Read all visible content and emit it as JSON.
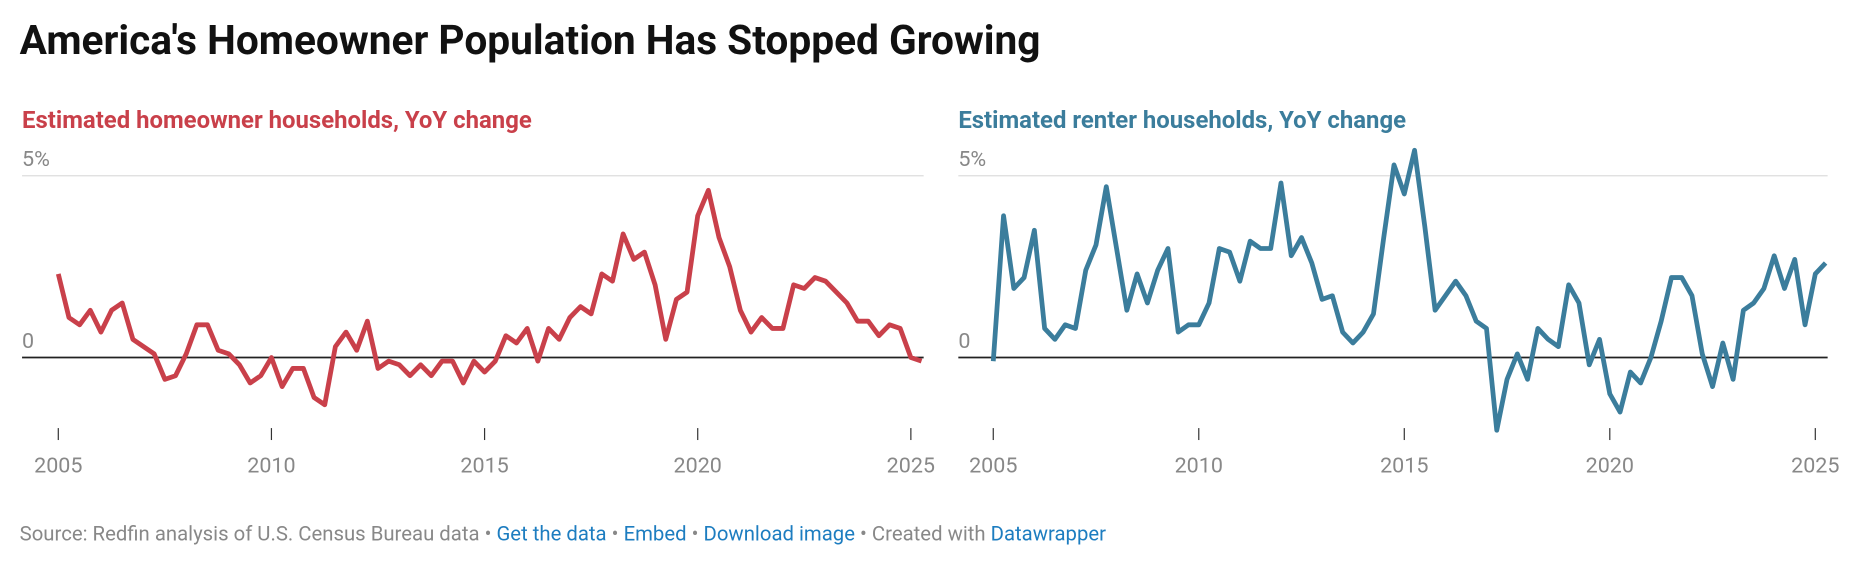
{
  "title": "America's Homeowner Population Has Stopped Growing",
  "chart_data": [
    {
      "type": "line",
      "title": "Estimated homeowner households, YoY change",
      "color": "#c9404a",
      "x": [
        2005,
        2005.25,
        2005.5,
        2005.75,
        2006,
        2006.25,
        2006.5,
        2006.75,
        2007,
        2007.25,
        2007.5,
        2007.75,
        2008,
        2008.25,
        2008.5,
        2008.75,
        2009,
        2009.25,
        2009.5,
        2009.75,
        2010,
        2010.25,
        2010.5,
        2010.75,
        2011,
        2011.25,
        2011.5,
        2011.75,
        2012,
        2012.25,
        2012.5,
        2012.75,
        2013,
        2013.25,
        2013.5,
        2013.75,
        2014,
        2014.25,
        2014.5,
        2014.75,
        2015,
        2015.25,
        2015.5,
        2015.75,
        2016,
        2016.25,
        2016.5,
        2016.75,
        2017,
        2017.25,
        2017.5,
        2017.75,
        2018,
        2018.25,
        2018.5,
        2018.75,
        2019,
        2019.25,
        2019.5,
        2019.75,
        2020,
        2020.25,
        2020.5,
        2020.75,
        2021,
        2021.25,
        2021.5,
        2021.75,
        2022,
        2022.25,
        2022.5,
        2022.75,
        2023,
        2023.25,
        2023.5,
        2023.75,
        2024,
        2024.25,
        2024.5,
        2024.75,
        2025,
        2025.25
      ],
      "values": [
        2.3,
        1.1,
        0.9,
        1.3,
        0.7,
        1.3,
        1.5,
        0.5,
        0.3,
        0.1,
        -0.6,
        -0.5,
        0.1,
        0.9,
        0.9,
        0.2,
        0.1,
        -0.2,
        -0.7,
        -0.5,
        0.0,
        -0.8,
        -0.3,
        -0.3,
        -1.1,
        -1.3,
        0.3,
        0.7,
        0.2,
        1.0,
        -0.3,
        -0.1,
        -0.2,
        -0.5,
        -0.2,
        -0.5,
        -0.1,
        -0.1,
        -0.7,
        -0.1,
        -0.4,
        -0.1,
        0.6,
        0.4,
        0.8,
        -0.1,
        0.8,
        0.5,
        1.1,
        1.4,
        1.2,
        2.3,
        2.1,
        3.4,
        2.7,
        2.9,
        2.0,
        0.5,
        1.6,
        1.8,
        3.9,
        4.6,
        3.3,
        2.5,
        1.3,
        0.7,
        1.1,
        0.8,
        0.8,
        2.0,
        1.9,
        2.2,
        2.1,
        1.8,
        1.5,
        1.0,
        1.0,
        0.6,
        0.9,
        0.8,
        0.0,
        -0.1
      ],
      "xlim": [
        2004.15,
        2025.3
      ],
      "xticks": [
        2005,
        2010,
        2015,
        2020,
        2025
      ],
      "ylim": [
        -2.5,
        5
      ],
      "yticks": [
        {
          "value": 5,
          "label": "5%"
        },
        0
      ],
      "grid": true
    },
    {
      "type": "line",
      "title": "Estimated renter households, YoY change",
      "color": "#3b7d9c",
      "x": [
        2005,
        2005.25,
        2005.5,
        2005.75,
        2006,
        2006.25,
        2006.5,
        2006.75,
        2007,
        2007.25,
        2007.5,
        2007.75,
        2008,
        2008.25,
        2008.5,
        2008.75,
        2009,
        2009.25,
        2009.5,
        2009.75,
        2010,
        2010.25,
        2010.5,
        2010.75,
        2011,
        2011.25,
        2011.5,
        2011.75,
        2012,
        2012.25,
        2012.5,
        2012.75,
        2013,
        2013.25,
        2013.5,
        2013.75,
        2014,
        2014.25,
        2014.5,
        2014.75,
        2015,
        2015.25,
        2015.5,
        2015.75,
        2016,
        2016.25,
        2016.5,
        2016.75,
        2017,
        2017.25,
        2017.5,
        2017.75,
        2018,
        2018.25,
        2018.5,
        2018.75,
        2019,
        2019.25,
        2019.5,
        2019.75,
        2020,
        2020.25,
        2020.5,
        2020.75,
        2021,
        2021.25,
        2021.5,
        2021.75,
        2022,
        2022.25,
        2022.5,
        2022.75,
        2023,
        2023.25,
        2023.5,
        2023.75,
        2024,
        2024.25,
        2024.5,
        2024.75,
        2025,
        2025.25
      ],
      "values": [
        -0.1,
        3.9,
        1.9,
        2.2,
        3.5,
        0.8,
        0.5,
        0.9,
        0.8,
        2.4,
        3.1,
        4.7,
        3.0,
        1.3,
        2.3,
        1.5,
        2.4,
        3.0,
        0.7,
        0.9,
        0.9,
        1.5,
        3.0,
        2.9,
        2.1,
        3.2,
        3.0,
        3.0,
        4.8,
        2.8,
        3.3,
        2.6,
        1.6,
        1.7,
        0.7,
        0.4,
        0.7,
        1.2,
        3.3,
        5.3,
        4.5,
        5.7,
        3.6,
        1.3,
        1.7,
        2.1,
        1.7,
        1.0,
        0.8,
        -2.0,
        -0.6,
        0.1,
        -0.6,
        0.8,
        0.5,
        0.3,
        2.0,
        1.5,
        -0.2,
        0.5,
        -1.0,
        -1.5,
        -0.4,
        -0.7,
        0.0,
        1.0,
        2.2,
        2.2,
        1.7,
        0.1,
        -0.8,
        0.4,
        -0.6,
        1.3,
        1.5,
        1.9,
        2.8,
        1.9,
        2.7,
        0.9,
        2.3,
        2.6
      ],
      "xlim": [
        2004.15,
        2025.3
      ],
      "xticks": [
        2005,
        2010,
        2015,
        2020,
        2025
      ],
      "ylim": [
        -2.5,
        5
      ],
      "yticks": [
        {
          "value": 5,
          "label": "5%"
        },
        0
      ],
      "grid": true
    }
  ],
  "footer": {
    "source": "Source: Redfin analysis of U.S. Census Bureau data",
    "separator": "•",
    "links": [
      "Get the data",
      "Embed",
      "Download image"
    ],
    "created": "Created with",
    "tool": "Datawrapper"
  }
}
